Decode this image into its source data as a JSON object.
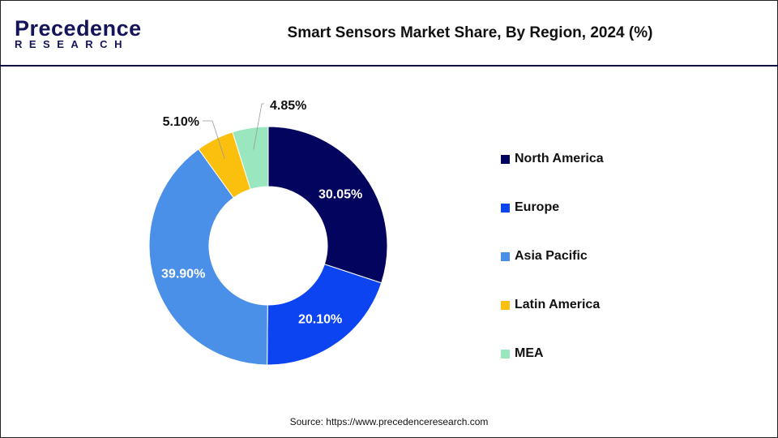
{
  "logo": {
    "line1": "Precedence",
    "line2": "RESEARCH"
  },
  "title": "Smart Sensors Market Share, By Region, 2024 (%)",
  "source": "Source: https://www.precedenceresearch.com",
  "chart_data": {
    "type": "pie",
    "variant": "donut",
    "title": "Smart Sensors Market Share, By Region, 2024 (%)",
    "categories": [
      "North America",
      "Europe",
      "Asia Pacific",
      "Latin America",
      "MEA"
    ],
    "values": [
      30.05,
      20.1,
      39.9,
      5.1,
      4.85
    ],
    "labels": [
      "30.05%",
      "20.10%",
      "39.90%",
      "5.10%",
      "4.85%"
    ],
    "colors": [
      "#03045e",
      "#0b44f0",
      "#4a8fe8",
      "#fbbf0e",
      "#99e6bf"
    ],
    "legend_position": "right"
  }
}
